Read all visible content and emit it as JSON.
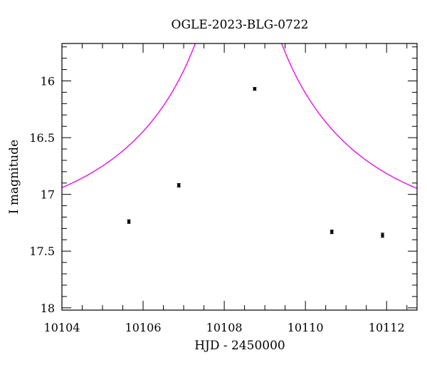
{
  "chart_data": {
    "type": "scatter",
    "title": "OGLE-2023-BLG-0722",
    "xlabel": "HJD - 2450000",
    "ylabel": "I magnitude",
    "xlim": [
      10104.0,
      10112.75
    ],
    "ylim": [
      18.02,
      15.67
    ],
    "y_inverted": true,
    "x_ticks": [
      10104,
      10106,
      10108,
      10110,
      10112
    ],
    "x_tick_labels": [
      "10104",
      "10106",
      "10108",
      "10110",
      "10112"
    ],
    "x_minor_step": 0.5,
    "y_ticks": [
      16,
      16.5,
      17,
      17.5,
      18
    ],
    "y_tick_labels": [
      "16",
      "16.5",
      "17",
      "17.5",
      "18"
    ],
    "y_minor_step": 0.1,
    "grid": false,
    "series": [
      {
        "kind": "points",
        "color": "#000000",
        "points": [
          {
            "x": 10105.65,
            "y": 17.24,
            "err": 0.015
          },
          {
            "x": 10106.88,
            "y": 16.92,
            "err": 0.015
          },
          {
            "x": 10108.75,
            "y": 16.07,
            "err": 0.012
          },
          {
            "x": 10110.65,
            "y": 17.33,
            "err": 0.015
          },
          {
            "x": 10111.9,
            "y": 17.36,
            "err": 0.018
          }
        ]
      },
      {
        "kind": "model",
        "color": "#e600e6",
        "model": {
          "t0": 10108.35,
          "tE": 5.0,
          "u0": 0.045,
          "baseline": 17.345
        }
      }
    ]
  }
}
